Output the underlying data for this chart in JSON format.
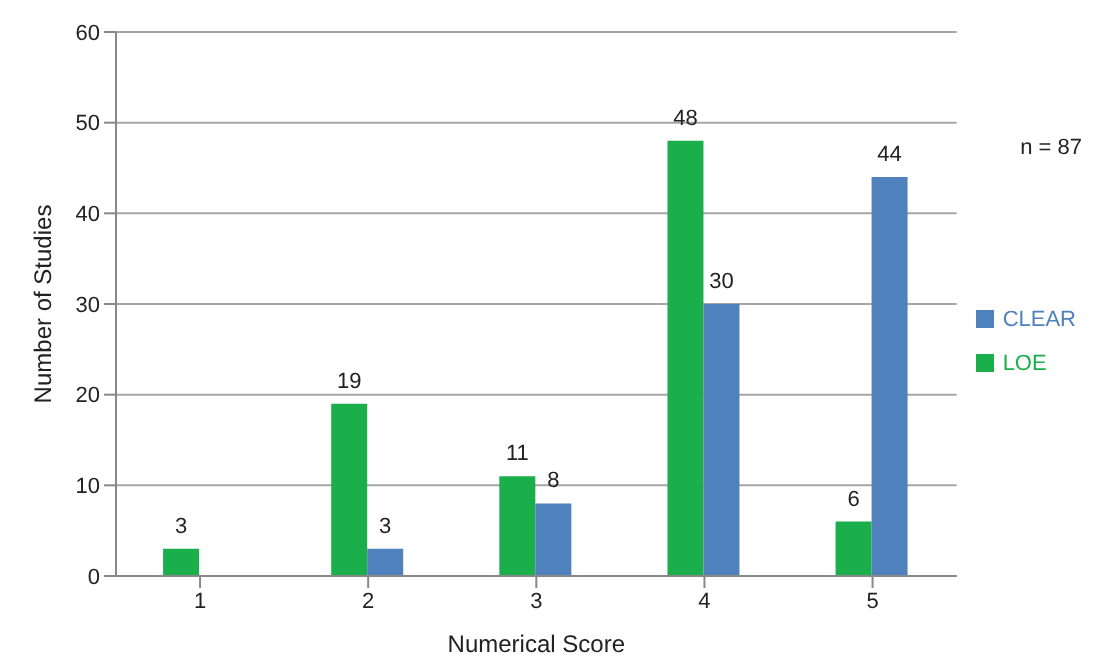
{
  "chart_data": {
    "type": "bar",
    "xlabel": "Numerical Score",
    "ylabel": "Number of Studies",
    "categories": [
      "1",
      "2",
      "3",
      "4",
      "5"
    ],
    "series": [
      {
        "name": "LOE",
        "color": "#1aaf4b",
        "values": [
          3,
          19,
          11,
          48,
          6
        ]
      },
      {
        "name": "CLEAR",
        "color": "#4f81bd",
        "values": [
          null,
          3,
          8,
          30,
          44
        ]
      }
    ],
    "ylim": [
      0,
      60
    ],
    "yticks": [
      0,
      10,
      20,
      30,
      40,
      50,
      60
    ],
    "grid": "y",
    "legend": "right",
    "data_labels": true,
    "annotations": [
      "n = 87"
    ]
  }
}
